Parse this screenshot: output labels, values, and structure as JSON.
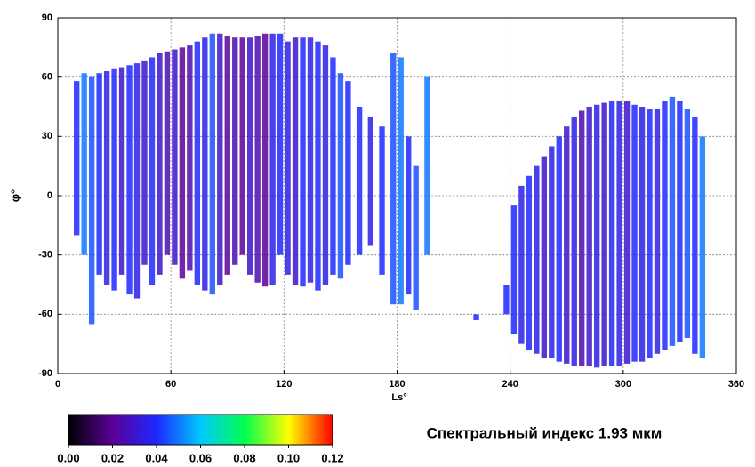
{
  "chart_data": {
    "type": "strips",
    "xlabel": "Ls°",
    "ylabel": "φ°",
    "annotation": "Спектральный индекс 1.93 мкм",
    "xlim": [
      0,
      360
    ],
    "xticks": [
      0,
      60,
      120,
      180,
      240,
      300,
      360
    ],
    "ylim": [
      -90,
      90
    ],
    "yticks": [
      -90,
      -60,
      -30,
      0,
      30,
      60,
      90
    ],
    "grid": true,
    "colormap": [
      "#000000",
      "#5a0096",
      "#1e28ff",
      "#00c8ff",
      "#00ff50",
      "#ffff00",
      "#ff0000"
    ],
    "clim": [
      0,
      0.12
    ],
    "cticks": [
      {
        "value": 0,
        "label": "0.00"
      },
      0.02,
      0.04,
      0.06,
      0.08,
      {
        "value": 0.1,
        "label": "0.10"
      },
      0.12
    ],
    "x": [
      10,
      14,
      18,
      22,
      26,
      30,
      34,
      38,
      42,
      46,
      50,
      54,
      58,
      62,
      66,
      70,
      74,
      78,
      82,
      86,
      90,
      94,
      98,
      102,
      106,
      110,
      114,
      118,
      122,
      126,
      130,
      134,
      138,
      142,
      146,
      150,
      154,
      160,
      166,
      172,
      178,
      182,
      186,
      190,
      196,
      222,
      238,
      242,
      246,
      250,
      254,
      258,
      262,
      266,
      270,
      274,
      278,
      282,
      286,
      290,
      294,
      298,
      302,
      306,
      310,
      314,
      318,
      322,
      326,
      330,
      334,
      338,
      342
    ],
    "ymin": [
      -20,
      -30,
      -65,
      -40,
      -45,
      -48,
      -40,
      -50,
      -52,
      -35,
      -45,
      -40,
      -30,
      -35,
      -42,
      -38,
      -45,
      -48,
      -50,
      -45,
      -40,
      -35,
      -30,
      -40,
      -44,
      -46,
      -45,
      -30,
      -40,
      -45,
      -46,
      -44,
      -48,
      -45,
      -40,
      -42,
      -35,
      -30,
      -25,
      -40,
      -55,
      -55,
      -50,
      -58,
      -30,
      -63,
      -60,
      -70,
      -75,
      -78,
      -80,
      -82,
      -82,
      -84,
      -85,
      -86,
      -86,
      -86,
      -87,
      -86,
      -86,
      -86,
      -85,
      -84,
      -84,
      -82,
      -80,
      -78,
      -76,
      -74,
      -72,
      -80,
      -82
    ],
    "ymax": [
      58,
      62,
      60,
      62,
      63,
      64,
      65,
      66,
      67,
      68,
      70,
      72,
      73,
      74,
      75,
      76,
      78,
      80,
      82,
      82,
      81,
      80,
      80,
      80,
      81,
      82,
      82,
      82,
      78,
      80,
      80,
      80,
      78,
      76,
      70,
      62,
      58,
      45,
      40,
      35,
      72,
      70,
      30,
      15,
      60,
      -60,
      -45,
      -5,
      5,
      10,
      15,
      20,
      25,
      30,
      35,
      40,
      43,
      45,
      46,
      47,
      48,
      48,
      48,
      46,
      45,
      44,
      44,
      48,
      50,
      48,
      44,
      40,
      30
    ],
    "values": [
      0.04,
      0.05,
      0.045,
      0.04,
      0.035,
      0.04,
      0.03,
      0.04,
      0.035,
      0.03,
      0.04,
      0.03,
      0.025,
      0.03,
      0.02,
      0.025,
      0.04,
      0.035,
      0.045,
      0.03,
      0.02,
      0.025,
      0.02,
      0.03,
      0.025,
      0.02,
      0.035,
      0.04,
      0.035,
      0.03,
      0.04,
      0.035,
      0.04,
      0.035,
      0.04,
      0.045,
      0.04,
      0.04,
      0.035,
      0.04,
      0.045,
      0.05,
      0.04,
      0.045,
      0.05,
      0.04,
      0.04,
      0.04,
      0.035,
      0.04,
      0.035,
      0.03,
      0.035,
      0.04,
      0.03,
      0.035,
      0.025,
      0.03,
      0.035,
      0.03,
      0.04,
      0.035,
      0.03,
      0.04,
      0.035,
      0.04,
      0.035,
      0.04,
      0.045,
      0.04,
      0.045,
      0.04,
      0.05
    ]
  }
}
